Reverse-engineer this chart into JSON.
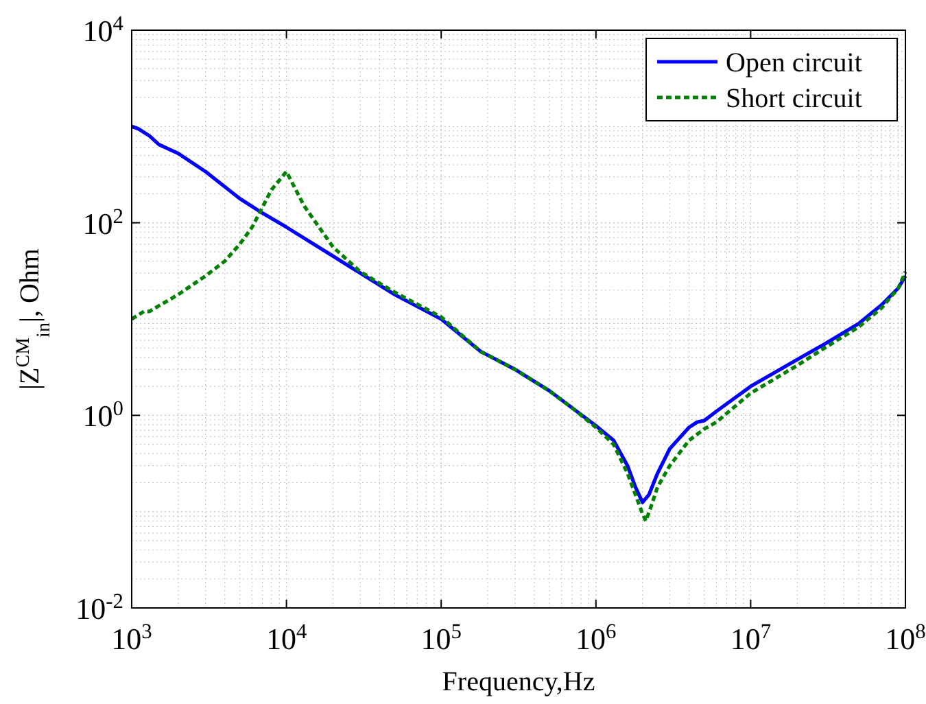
{
  "chart_data": {
    "type": "line",
    "xlabel": "Frequency,Hz",
    "ylabel": "|Z$^{CM}$$_{in}$|, Ohm",
    "log": "xy",
    "grid": true,
    "legend": "top right",
    "xlim": [
      1000,
      100000000
    ],
    "ylim": [
      0.01,
      10000
    ],
    "xticks": [
      {
        "value": 1000,
        "label": "10$^{3}$"
      },
      {
        "value": 10000,
        "label": "10$^{4}$"
      },
      {
        "value": 100000,
        "label": "10$^{5}$"
      },
      {
        "value": 1000000,
        "label": "10$^{6}$"
      },
      {
        "value": 10000000,
        "label": "10$^{7}$"
      },
      {
        "value": 100000000,
        "label": "10$^{8}$"
      }
    ],
    "yticks": [
      {
        "value": 0.01,
        "label": "10$^{-2}$"
      },
      {
        "value": 1,
        "label": "10$^{0}$"
      },
      {
        "value": 100,
        "label": "10$^{2}$"
      },
      {
        "value": 10000,
        "label": "10$^{4}$"
      }
    ],
    "series": [
      {
        "name": "Open circuit",
        "color": "#0000ff",
        "line_style": "solid",
        "x": [
          1000,
          1100,
          1300,
          1500,
          2000,
          3000,
          5000,
          7000,
          10000,
          20000,
          30000,
          50000,
          100000,
          180000,
          190000,
          300000,
          500000,
          700000,
          1000000,
          1300000,
          1600000,
          1800000,
          2000000,
          2200000,
          2500000,
          3000000,
          4000000,
          4500000,
          5000000,
          6000000,
          10000000,
          20000000,
          30000000,
          50000000,
          70000000,
          90000000,
          100000000
        ],
        "values": [
          1000,
          950,
          800,
          650,
          525,
          340,
          178,
          126,
          90,
          45,
          30,
          18,
          10,
          4.6,
          4.4,
          3,
          1.8,
          1.2,
          0.78,
          0.55,
          0.3,
          0.18,
          0.125,
          0.15,
          0.25,
          0.45,
          0.75,
          0.85,
          0.88,
          1.1,
          2.0,
          3.8,
          5.5,
          9,
          14,
          21,
          28
        ]
      },
      {
        "name": "Short circuit",
        "color": "#008000",
        "line_style": "dashed",
        "x": [
          1000,
          1200,
          1300,
          2000,
          3000,
          4000,
          5000,
          6000,
          8000,
          10000,
          13000,
          20000,
          30000,
          50000,
          100000,
          180000,
          190000,
          300000,
          500000,
          700000,
          1000000,
          1300000,
          1600000,
          1800000,
          2000000,
          2100000,
          2300000,
          2500000,
          3000000,
          4000000,
          5000000,
          6000000,
          10000000,
          20000000,
          30000000,
          50000000,
          70000000,
          90000000,
          100000000
        ],
        "values": [
          10,
          12,
          12,
          18,
          28,
          40,
          60,
          90,
          220,
          340,
          150,
          56,
          31,
          19,
          10.5,
          4.6,
          4.4,
          3,
          1.8,
          1.2,
          0.75,
          0.5,
          0.25,
          0.15,
          0.095,
          0.08,
          0.12,
          0.18,
          0.3,
          0.55,
          0.72,
          0.85,
          1.7,
          3.3,
          5,
          8.3,
          13,
          21,
          31
        ]
      }
    ]
  }
}
